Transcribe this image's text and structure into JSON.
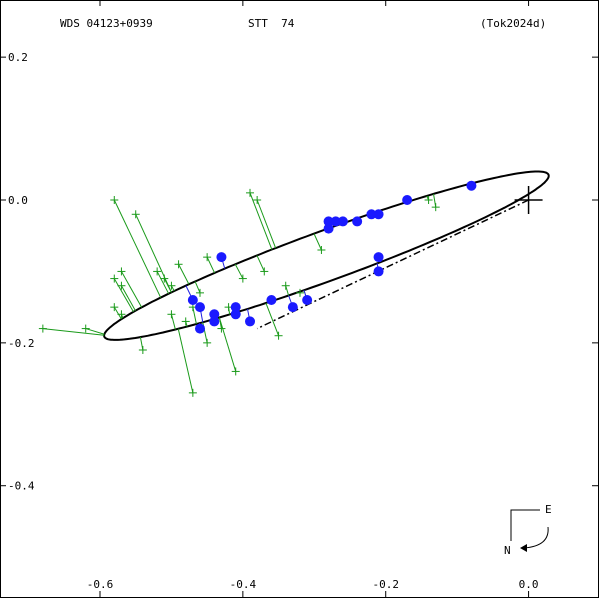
{
  "chart_data": {
    "type": "scatter",
    "header": {
      "left": "WDS 04123+0939",
      "center": "STT  74",
      "right": "(Tok2024d)"
    },
    "xlim": [
      -0.74,
      0.1
    ],
    "ylim": [
      -0.56,
      0.28
    ],
    "x_ticks": [
      {
        "value": -0.6,
        "label": "-0.6"
      },
      {
        "value": -0.4,
        "label": "-0.4"
      },
      {
        "value": -0.2,
        "label": "-0.2"
      },
      {
        "value": 0.0,
        "label": "0.0"
      }
    ],
    "y_ticks": [
      {
        "value": 0.2,
        "label": "0.2"
      },
      {
        "value": 0.0,
        "label": "0.0"
      },
      {
        "value": -0.2,
        "label": "-0.2"
      },
      {
        "value": -0.4,
        "label": "-0.4"
      }
    ],
    "compass": {
      "east": "E",
      "north": "N"
    },
    "primary": {
      "x": 0.0,
      "y": 0.0
    },
    "orbit": {
      "center": [
        -0.283,
        -0.078
      ],
      "a": 0.331,
      "b": 0.035,
      "angle_deg": 20.0
    },
    "node_line": {
      "from": [
        0.0,
        0.0
      ],
      "to": [
        -0.38,
        -0.18
      ]
    },
    "visual_measures": [
      {
        "x": -0.68,
        "y": -0.18
      },
      {
        "x": -0.62,
        "y": -0.18
      },
      {
        "x": -0.58,
        "y": -0.15
      },
      {
        "x": -0.57,
        "y": -0.16
      },
      {
        "x": -0.58,
        "y": -0.11
      },
      {
        "x": -0.57,
        "y": -0.12
      },
      {
        "x": -0.57,
        "y": -0.1
      },
      {
        "x": -0.58,
        "y": -0.0
      },
      {
        "x": -0.55,
        "y": -0.02
      },
      {
        "x": -0.54,
        "y": -0.21
      },
      {
        "x": -0.52,
        "y": -0.1
      },
      {
        "x": -0.51,
        "y": -0.11
      },
      {
        "x": -0.5,
        "y": -0.12
      },
      {
        "x": -0.5,
        "y": -0.16
      },
      {
        "x": -0.49,
        "y": -0.09
      },
      {
        "x": -0.48,
        "y": -0.17
      },
      {
        "x": -0.47,
        "y": -0.15
      },
      {
        "x": -0.47,
        "y": -0.27
      },
      {
        "x": -0.46,
        "y": -0.13
      },
      {
        "x": -0.45,
        "y": -0.08
      },
      {
        "x": -0.45,
        "y": -0.2
      },
      {
        "x": -0.44,
        "y": -0.16
      },
      {
        "x": -0.43,
        "y": -0.18
      },
      {
        "x": -0.42,
        "y": -0.15
      },
      {
        "x": -0.41,
        "y": -0.24
      },
      {
        "x": -0.4,
        "y": -0.11
      },
      {
        "x": -0.39,
        "y": 0.01
      },
      {
        "x": -0.38,
        "y": -0.0
      },
      {
        "x": -0.37,
        "y": -0.1
      },
      {
        "x": -0.36,
        "y": -0.14
      },
      {
        "x": -0.35,
        "y": -0.19
      },
      {
        "x": -0.34,
        "y": -0.12
      },
      {
        "x": -0.32,
        "y": -0.13
      },
      {
        "x": -0.31,
        "y": -0.14
      },
      {
        "x": -0.29,
        "y": -0.07
      },
      {
        "x": -0.13,
        "y": -0.01
      },
      {
        "x": -0.14,
        "y": -0.0
      }
    ],
    "speckle_measures": [
      {
        "x": -0.47,
        "y": -0.14
      },
      {
        "x": -0.46,
        "y": -0.15
      },
      {
        "x": -0.46,
        "y": -0.18
      },
      {
        "x": -0.44,
        "y": -0.16
      },
      {
        "x": -0.44,
        "y": -0.17
      },
      {
        "x": -0.43,
        "y": -0.08
      },
      {
        "x": -0.41,
        "y": -0.15
      },
      {
        "x": -0.41,
        "y": -0.16
      },
      {
        "x": -0.39,
        "y": -0.17
      },
      {
        "x": -0.36,
        "y": -0.14
      },
      {
        "x": -0.33,
        "y": -0.15
      },
      {
        "x": -0.31,
        "y": -0.14
      },
      {
        "x": -0.28,
        "y": -0.03
      },
      {
        "x": -0.28,
        "y": -0.04
      },
      {
        "x": -0.27,
        "y": -0.03
      },
      {
        "x": -0.26,
        "y": -0.03
      },
      {
        "x": -0.24,
        "y": -0.03
      },
      {
        "x": -0.22,
        "y": -0.02
      },
      {
        "x": -0.21,
        "y": -0.02
      },
      {
        "x": -0.21,
        "y": -0.08
      },
      {
        "x": -0.21,
        "y": -0.1
      },
      {
        "x": -0.17,
        "y": 0.0
      },
      {
        "x": -0.08,
        "y": 0.02
      }
    ]
  }
}
